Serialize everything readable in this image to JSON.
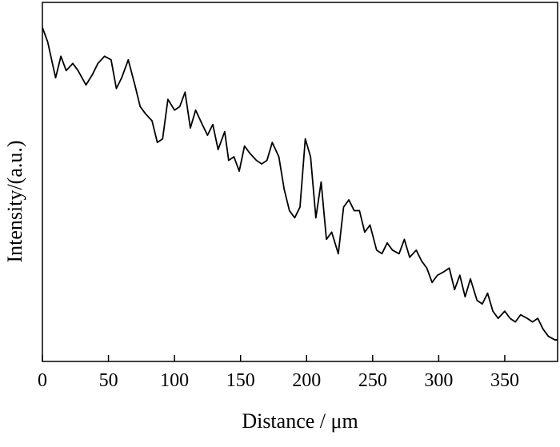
{
  "chart_data": {
    "type": "line",
    "title": "",
    "xlabel": "Distance / μm",
    "ylabel": "Intensity/(a.u.)",
    "xlim": [
      0,
      390
    ],
    "ylim": [
      0,
      100
    ],
    "x_ticks": [
      0,
      50,
      100,
      150,
      200,
      250,
      300,
      350
    ],
    "x_tick_labels": [
      "0",
      "50",
      "100",
      "150",
      "200",
      "250",
      "300",
      "350"
    ],
    "y_ticks": [],
    "y_tick_labels": [],
    "grid": false,
    "legend": "none",
    "line_color": "#000000",
    "series": [
      {
        "x": [
          0,
          4,
          10,
          14,
          18,
          23,
          27,
          33,
          38,
          42,
          47,
          52,
          56,
          60,
          65,
          70,
          74,
          78,
          83,
          87,
          91,
          95,
          100,
          104,
          108,
          112,
          116,
          121,
          125,
          129,
          133,
          138,
          141,
          145,
          149,
          153,
          157,
          162,
          166,
          170,
          174,
          179,
          183,
          187,
          191,
          195,
          199,
          203,
          207,
          211,
          215,
          219,
          224,
          228,
          232,
          236,
          240,
          244,
          248,
          253,
          257,
          261,
          265,
          270,
          274,
          278,
          283,
          287,
          291,
          295,
          299,
          304,
          308,
          312,
          316,
          320,
          324,
          329,
          333,
          337,
          341,
          345,
          350,
          354,
          358,
          362,
          367,
          371,
          375,
          379,
          383,
          388,
          390
        ],
        "y": [
          93,
          89,
          79,
          85,
          81,
          83,
          81,
          77,
          80,
          83,
          85,
          84,
          76,
          79,
          84,
          77,
          71,
          69,
          67,
          61,
          62,
          73,
          70,
          71,
          75,
          65,
          70,
          66,
          63,
          66,
          59,
          64,
          56,
          57,
          53,
          60,
          58,
          56,
          55,
          56,
          61,
          57,
          48,
          42,
          40,
          43,
          62,
          57,
          40,
          50,
          34,
          36,
          30,
          43,
          45,
          42,
          42,
          36,
          38,
          31,
          30,
          33,
          31,
          30,
          34,
          29,
          31,
          28,
          26,
          22,
          24,
          25,
          26,
          20,
          24,
          18,
          23,
          17,
          16,
          19,
          14,
          12,
          14,
          12,
          11,
          13,
          12,
          11,
          12,
          9,
          7,
          6,
          6
        ]
      }
    ]
  }
}
